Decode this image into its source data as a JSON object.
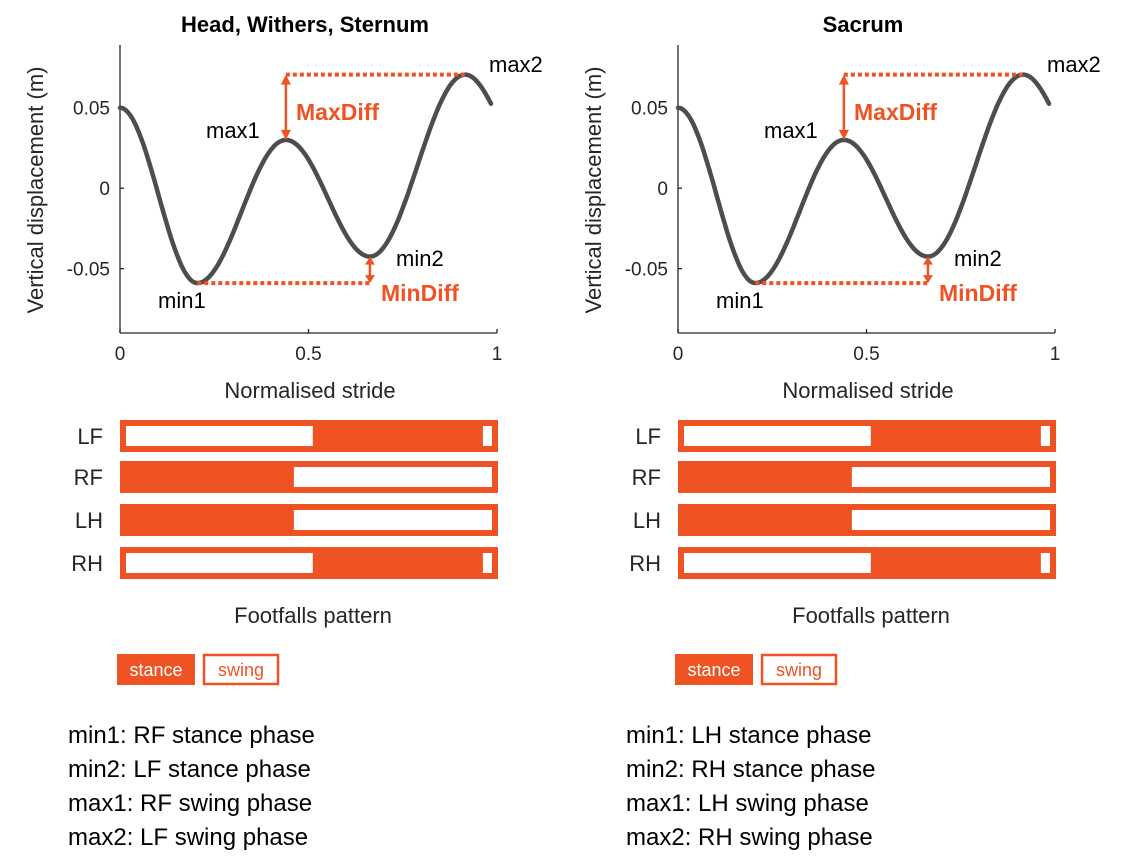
{
  "colors": {
    "accent": "#F05323",
    "curve": "#4D4D4D",
    "axis": "#262626",
    "text": "#000000"
  },
  "chart_data": [
    {
      "type": "line",
      "title": "Head, Withers, Sternum",
      "xlabel": "Normalised stride",
      "ylabel": "Vertical displacement (m)",
      "xlim": [
        0,
        1
      ],
      "ylim": [
        -0.09,
        0.089
      ],
      "xticks": [
        {
          "v": 0,
          "label": "0"
        },
        {
          "v": 0.5,
          "label": "0.5"
        },
        {
          "v": 1,
          "label": "1"
        }
      ],
      "yticks": [
        {
          "v": 0.05,
          "label": "0.05"
        },
        {
          "v": 0,
          "label": "0"
        },
        {
          "v": -0.05,
          "label": "-0.05"
        }
      ],
      "curve": {
        "x": [
          0,
          0.205,
          0.44,
          0.663,
          0.915,
          0.984
        ],
        "y": [
          0.05,
          -0.059,
          0.03,
          -0.0425,
          0.0706,
          0.0525
        ]
      },
      "annotations": {
        "max1": "max1",
        "max2": "max2",
        "min1": "min1",
        "min2": "min2",
        "max_diff": "MaxDiff",
        "min_diff": "MinDiff"
      },
      "footfalls": {
        "title": "Footfalls pattern",
        "rows": [
          {
            "label": "LF",
            "stance": [
              [
                0.51,
                0.96
              ]
            ]
          },
          {
            "label": "RF",
            "stance": [
              [
                0,
                0.46
              ]
            ]
          },
          {
            "label": "LH",
            "stance": [
              [
                0,
                0.46
              ]
            ]
          },
          {
            "label": "RH",
            "stance": [
              [
                0.51,
                0.96
              ]
            ]
          }
        ],
        "legend": {
          "stance": "stance",
          "swing": "swing"
        }
      },
      "notes": [
        "min1: RF stance phase",
        "min2: LF stance phase",
        "max1: RF swing phase",
        "max2: LF swing phase"
      ]
    },
    {
      "type": "line",
      "title": "Sacrum",
      "xlabel": "Normalised stride",
      "ylabel": "Vertical displacement (m)",
      "xlim": [
        0,
        1
      ],
      "ylim": [
        -0.09,
        0.089
      ],
      "xticks": [
        {
          "v": 0,
          "label": "0"
        },
        {
          "v": 0.5,
          "label": "0.5"
        },
        {
          "v": 1,
          "label": "1"
        }
      ],
      "yticks": [
        {
          "v": 0.05,
          "label": "0.05"
        },
        {
          "v": 0,
          "label": "0"
        },
        {
          "v": -0.05,
          "label": "-0.05"
        }
      ],
      "curve": {
        "x": [
          0,
          0.205,
          0.44,
          0.663,
          0.915,
          0.984
        ],
        "y": [
          0.05,
          -0.059,
          0.03,
          -0.0425,
          0.0706,
          0.0525
        ]
      },
      "annotations": {
        "max1": "max1",
        "max2": "max2",
        "min1": "min1",
        "min2": "min2",
        "max_diff": "MaxDiff",
        "min_diff": "MinDiff"
      },
      "footfalls": {
        "title": "Footfalls pattern",
        "rows": [
          {
            "label": "LF",
            "stance": [
              [
                0.51,
                0.96
              ]
            ]
          },
          {
            "label": "RF",
            "stance": [
              [
                0,
                0.46
              ]
            ]
          },
          {
            "label": "LH",
            "stance": [
              [
                0,
                0.46
              ]
            ]
          },
          {
            "label": "RH",
            "stance": [
              [
                0.51,
                0.96
              ]
            ]
          }
        ],
        "legend": {
          "stance": "stance",
          "swing": "swing"
        }
      },
      "notes": [
        "min1: LH stance phase",
        "min2: RH stance phase",
        "max1: LH swing phase",
        "max2: RH swing phase"
      ]
    }
  ]
}
